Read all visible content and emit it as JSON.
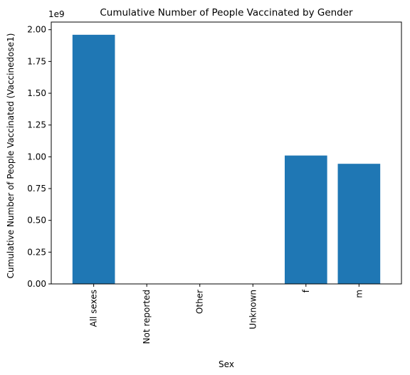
{
  "chart_data": {
    "type": "bar",
    "title": "Cumulative Number of People Vaccinated by Gender",
    "xlabel": "Sex",
    "ylabel": "Cumulative Number of People Vaccinated (Vaccinedose1)",
    "y_offset_label": "1e9",
    "categories": [
      "All sexes",
      "Not reported",
      "Other",
      "Unknown",
      "f",
      "m"
    ],
    "values": [
      1960000000,
      0,
      0,
      0,
      1010000000,
      945000000
    ],
    "ylim": [
      0,
      2060000000
    ],
    "yticks": [
      0,
      250000000,
      500000000,
      750000000,
      1000000000,
      1250000000,
      1500000000,
      1750000000,
      2000000000
    ],
    "ytick_labels": [
      "0.00",
      "0.25",
      "0.50",
      "0.75",
      "1.00",
      "1.25",
      "1.50",
      "1.75",
      "2.00"
    ],
    "bar_color": "#1f77b4",
    "grid": false,
    "legend": "none"
  }
}
